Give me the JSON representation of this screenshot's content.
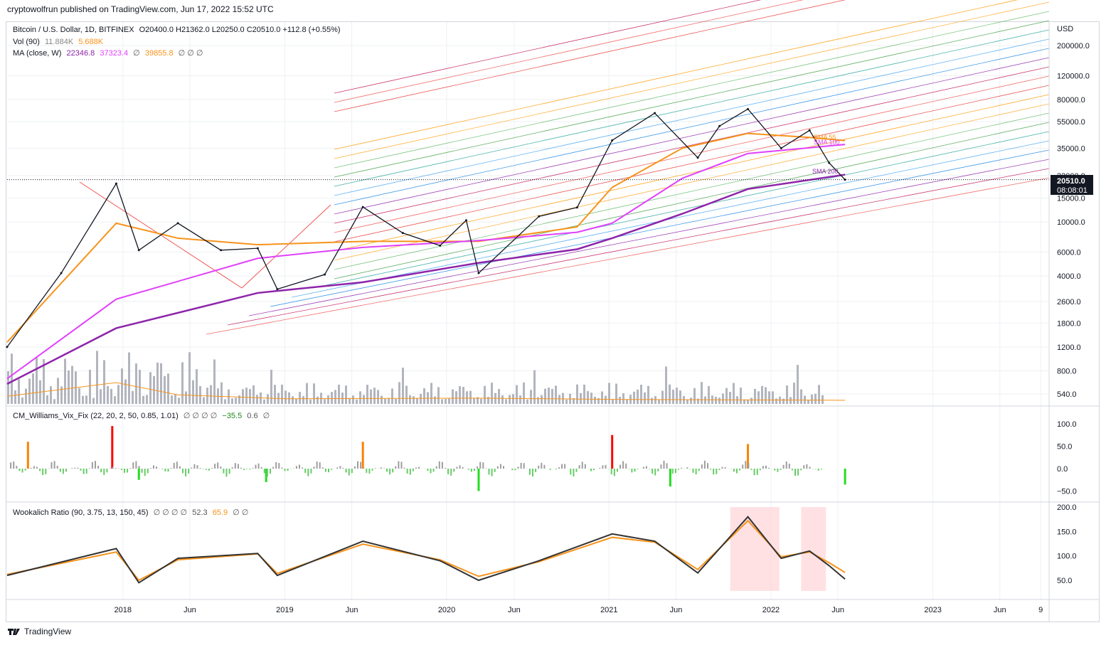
{
  "header": {
    "publisher": "cryptowolfrun published on TradingView.com, Jun 17, 2022 15:52 UTC"
  },
  "footer": {
    "logo_icon": "tradingview-logo-icon",
    "brand": "TradingView"
  },
  "legend_main": {
    "symbol": "Bitcoin / U.S. Dollar, 1D, BITFINEX",
    "ohlc": "O20400.0  H21362.0  L20250.0  C20510.0  +112.8 (+0.55%)",
    "vol_label": "Vol (90)",
    "vol_v1": "11.884K",
    "vol_v2": "5.688K",
    "ma_label": "MA (close, W)",
    "ma_v1": "22346.8",
    "ma_v2": "37323.4",
    "ma_v3": "39855.8",
    "ma_sym": "∅",
    "ma_sym2": "∅  ∅  ∅"
  },
  "legend_vix": {
    "label": "CM_Williams_Vix_Fix (22, 20, 2, 50, 0.85, 1.01)",
    "syms": "∅  ∅  ∅  ∅",
    "v1": "−35.5",
    "v2": "0.6",
    "sym": "∅"
  },
  "legend_wr": {
    "label": "Wookalich Ratio (90, 3.75, 13, 150, 45)",
    "syms": "∅  ∅  ∅  ∅",
    "v1": "52.3",
    "v2": "65.9",
    "syms2": "∅  ∅"
  },
  "price_label": {
    "value": "20510.0",
    "countdown": "08:08:01"
  },
  "annotations": {
    "ema55": "EMA 55",
    "sma100": "SMA 100",
    "sma200": "SMA 200"
  },
  "colors": {
    "ema55": "#f7931a",
    "sma100": "#e040fb",
    "sma200": "#8e24aa",
    "price": "#131722",
    "grid": "#eef0f3"
  },
  "chart_data": [
    {
      "type": "line",
      "panel": "price",
      "currency": "USD",
      "scale": "log",
      "y_ticks": [
        540,
        800,
        1200,
        1800,
        2600,
        4000,
        6000,
        10000,
        15000,
        22000,
        35000,
        55000,
        80000,
        120000,
        200000
      ],
      "y_tick_labels": [
        "540.0",
        "800.0",
        "1200.0",
        "1800.0",
        "2600.0",
        "4000.0",
        "6000.0",
        "10000.0",
        "15000.0",
        "22000.0",
        "35000.0",
        "55000.0",
        "80000.0",
        "120000.0",
        "200000.0"
      ],
      "x_ticks": [
        "2018",
        "Jun",
        "2019",
        "Jun",
        "2020",
        "Jun",
        "2021",
        "Jun",
        "2022",
        "Jun",
        "2023",
        "Jun",
        "9"
      ],
      "x_tick_dates": [
        "2018-01-01",
        "2018-06-01",
        "2019-01-01",
        "2019-06-01",
        "2020-01-01",
        "2020-06-01",
        "2021-01-01",
        "2021-06-01",
        "2022-01-01",
        "2022-06-01",
        "2023-01-01",
        "2023-06-01",
        "2023-09-01"
      ],
      "series": [
        {
          "name": "BTCUSD",
          "x": [
            "2017-04-15",
            "2017-08-15",
            "2017-12-17",
            "2018-02-06",
            "2018-05-05",
            "2018-08-10",
            "2018-11-01",
            "2018-12-15",
            "2019-04-01",
            "2019-06-26",
            "2019-09-24",
            "2019-12-17",
            "2020-02-14",
            "2020-03-13",
            "2020-07-27",
            "2020-10-21",
            "2021-01-08",
            "2021-04-14",
            "2021-07-20",
            "2021-09-07",
            "2021-11-10",
            "2022-01-24",
            "2022-03-29",
            "2022-05-12",
            "2022-06-17"
          ],
          "y": [
            1200,
            4200,
            19200,
            6200,
            9800,
            6200,
            6400,
            3200,
            4100,
            12900,
            8300,
            6700,
            10300,
            4200,
            11000,
            12800,
            40000,
            63500,
            29800,
            51000,
            68000,
            35000,
            47400,
            27300,
            20510
          ]
        },
        {
          "name": "EMA 55",
          "x": [
            "2017-04-15",
            "2017-12-17",
            "2018-05-05",
            "2018-11-01",
            "2019-06-26",
            "2020-03-13",
            "2020-10-21",
            "2021-01-08",
            "2021-06-15",
            "2021-11-10",
            "2022-03-29",
            "2022-06-17"
          ],
          "y": [
            1300,
            9800,
            7600,
            6800,
            7200,
            7200,
            9200,
            18000,
            35000,
            45000,
            42000,
            39855.8
          ]
        },
        {
          "name": "SMA 100",
          "x": [
            "2017-04-15",
            "2017-12-17",
            "2018-11-01",
            "2019-06-26",
            "2020-03-13",
            "2020-10-21",
            "2021-01-08",
            "2021-06-15",
            "2021-11-10",
            "2022-06-17"
          ],
          "y": [
            700,
            2700,
            5400,
            6500,
            7300,
            8400,
            9800,
            21000,
            32000,
            37323.4
          ]
        },
        {
          "name": "SMA 200",
          "x": [
            "2017-04-15",
            "2017-12-17",
            "2018-11-01",
            "2019-06-26",
            "2020-03-13",
            "2020-10-21",
            "2021-01-08",
            "2021-06-15",
            "2021-11-10",
            "2022-06-17"
          ],
          "y": [
            640,
            1650,
            3000,
            3600,
            5000,
            6300,
            7600,
            11500,
            17500,
            22346.8
          ]
        },
        {
          "name": "Vol (90)",
          "x": [
            "2017-04-15",
            "2017-12-17",
            "2018-05-05",
            "2019-01-01",
            "2020-03-13",
            "2021-01-08",
            "2022-06-17"
          ],
          "y": [
            11884,
            33000,
            14000,
            8000,
            9000,
            7000,
            5688
          ]
        }
      ],
      "current_price": 20510.0
    },
    {
      "type": "bar",
      "panel": "CM_Williams_Vix_Fix",
      "y_ticks": [
        -50,
        0,
        50,
        100
      ],
      "y_tick_labels": [
        "−50.0",
        "0.0",
        "50.0",
        "100.0"
      ],
      "x": [
        "2017-06-01",
        "2017-12-08",
        "2018-02-06",
        "2018-11-20",
        "2019-06-26",
        "2020-03-13",
        "2021-01-08",
        "2021-05-19",
        "2021-11-10",
        "2022-06-17"
      ],
      "values": [
        60,
        95,
        -25,
        -30,
        60,
        -50,
        75,
        -40,
        55,
        -35.5
      ]
    },
    {
      "type": "line",
      "panel": "Wookalich Ratio",
      "y_ticks": [
        50,
        100,
        150,
        200
      ],
      "y_tick_labels": [
        "50.0",
        "100.0",
        "150.0",
        "200.0"
      ],
      "series": [
        {
          "name": "ratio",
          "x": [
            "2017-04-15",
            "2017-12-17",
            "2018-02-06",
            "2018-05-05",
            "2018-11-01",
            "2018-12-15",
            "2019-06-26",
            "2019-12-17",
            "2020-03-13",
            "2020-07-27",
            "2021-01-08",
            "2021-04-14",
            "2021-07-20",
            "2021-11-10",
            "2022-01-24",
            "2022-03-29",
            "2022-05-12",
            "2022-06-17"
          ],
          "y": [
            60,
            115,
            45,
            95,
            105,
            60,
            130,
            90,
            50,
            90,
            145,
            130,
            65,
            180,
            95,
            110,
            80,
            52.3
          ]
        },
        {
          "name": "signal",
          "x": [
            "2017-04-15",
            "2017-12-17",
            "2018-02-06",
            "2018-05-05",
            "2018-11-01",
            "2018-12-15",
            "2019-06-26",
            "2019-12-17",
            "2020-03-13",
            "2020-07-27",
            "2021-01-08",
            "2021-04-14",
            "2021-07-20",
            "2021-11-10",
            "2022-01-24",
            "2022-03-29",
            "2022-05-12",
            "2022-06-17"
          ],
          "y": [
            62,
            108,
            50,
            92,
            104,
            64,
            124,
            92,
            58,
            88,
            138,
            128,
            72,
            172,
            98,
            108,
            86,
            65.9
          ]
        }
      ]
    }
  ]
}
